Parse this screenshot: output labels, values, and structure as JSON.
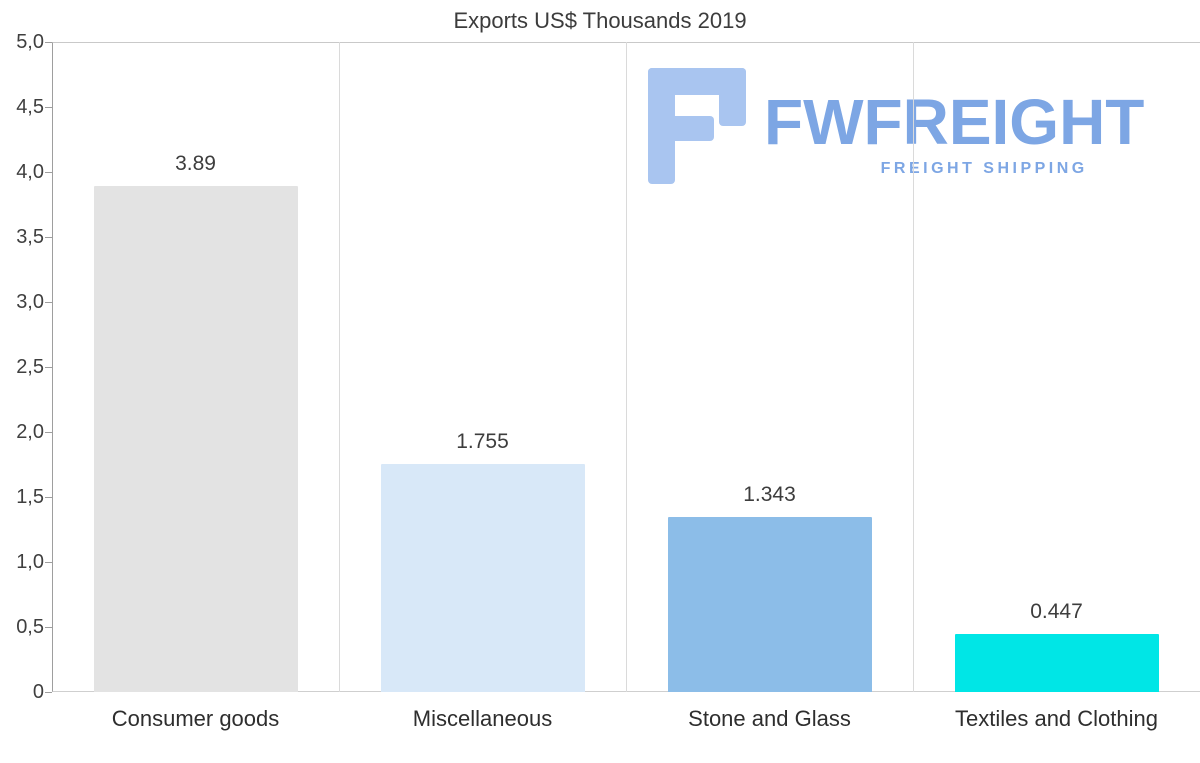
{
  "chart_data": {
    "type": "bar",
    "title": "Exports US$ Thousands 2019",
    "categories": [
      "Consumer goods",
      "Miscellaneous",
      "Stone and Glass",
      "Textiles and Clothing"
    ],
    "values": [
      3.89,
      1.755,
      1.343,
      0.447
    ],
    "value_labels": [
      "3.89",
      "1.755",
      "1.343",
      "0.447"
    ],
    "bar_colors": [
      "#e3e3e3",
      "#d8e8f8",
      "#8cbde8",
      "#00e6e6"
    ],
    "xlabel": "",
    "ylabel": "",
    "ylim": [
      0,
      5
    ],
    "ytick_values": [
      5,
      4.5,
      4,
      3.5,
      3,
      2.5,
      2,
      1.5,
      1,
      0.5,
      0
    ],
    "ytick_labels": [
      "5,0",
      "4,5",
      "4,0",
      "3,5",
      "3,0",
      "2,5",
      "2,0",
      "1,5",
      "1,0",
      "0,5",
      "0"
    ],
    "grid": "vertical-only",
    "legend": "none"
  },
  "watermark": {
    "brand": "FWFREIGHT",
    "tagline": "FREIGHT SHIPPING",
    "color": "#7da6e4"
  }
}
